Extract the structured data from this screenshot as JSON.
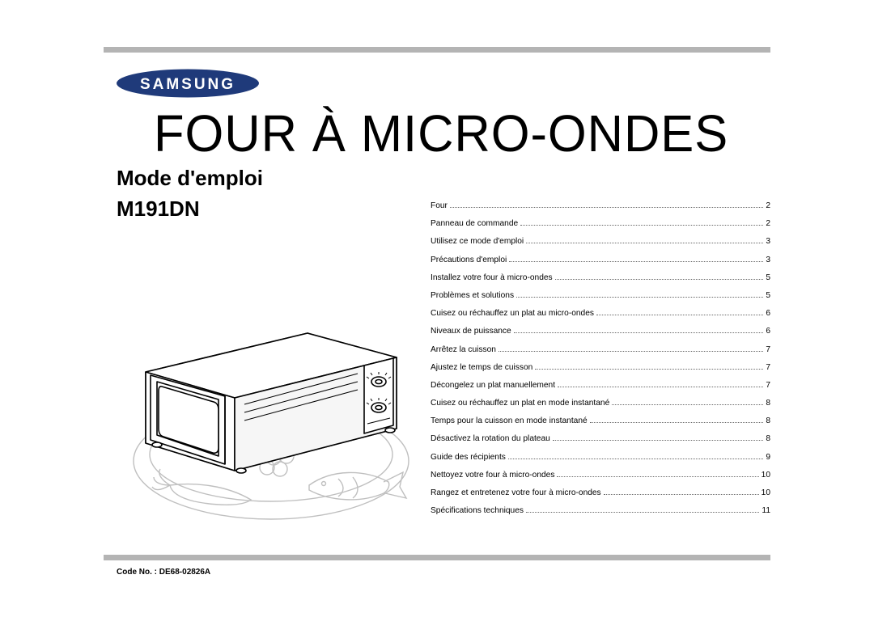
{
  "brand": "SAMSUNG",
  "title": "FOUR À MICRO-ONDES",
  "subtitle": "Mode d'emploi",
  "model": "M191DN",
  "code_label": "Code No. : ",
  "code_value": "DE68-02826A",
  "toc": {
    "items": [
      {
        "label": "Four",
        "page": "2"
      },
      {
        "label": "Panneau de commande",
        "page": "2"
      },
      {
        "label": "Utilisez ce mode d'emploi",
        "page": "3"
      },
      {
        "label": "Précautions d'emploi",
        "page": "3"
      },
      {
        "label": "Installez votre four à micro-ondes",
        "page": "5"
      },
      {
        "label": "Problèmes et solutions",
        "page": "5"
      },
      {
        "label": "Cuisez ou réchauffez un plat au micro-ondes",
        "page": "6"
      },
      {
        "label": "Niveaux de puissance",
        "page": "6"
      },
      {
        "label": "Arrêtez la cuisson",
        "page": "7"
      },
      {
        "label": "Ajustez le temps de cuisson",
        "page": "7"
      },
      {
        "label": "Décongelez un plat manuellement",
        "page": "7"
      },
      {
        "label": "Cuisez ou réchauffez un plat en mode instantané",
        "page": "8"
      },
      {
        "label": "Temps pour la cuisson en mode instantané",
        "page": "8"
      },
      {
        "label": "Désactivez la rotation du plateau",
        "page": "8"
      },
      {
        "label": "Guide des récipients",
        "page": "9"
      },
      {
        "label": "Nettoyez votre four à micro-ondes",
        "page": "10"
      },
      {
        "label": "Rangez et entretenez votre four à micro-ondes",
        "page": "10"
      },
      {
        "label": "Spécifications techniques",
        "page": "11"
      }
    ]
  },
  "style": {
    "bar_color": "#b4b4b4",
    "title_fontsize": 64,
    "subtitle_fontsize": 26,
    "model_fontsize": 26,
    "toc_fontsize": 10.2,
    "code_fontsize": 10,
    "logo_color": "#1f3a7a",
    "illustration_stroke": "#9d9d9d",
    "microwave_stroke": "#000000",
    "bg": "#ffffff"
  }
}
